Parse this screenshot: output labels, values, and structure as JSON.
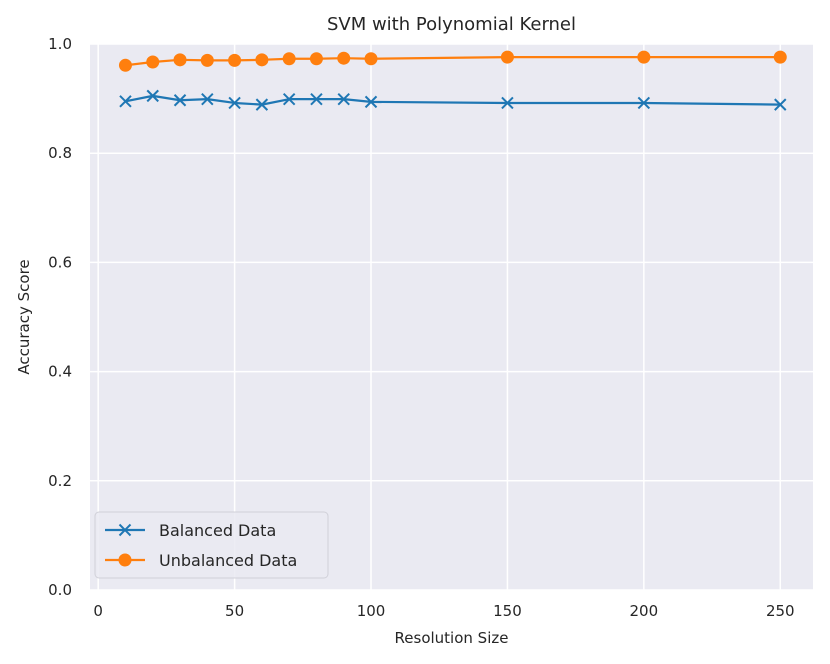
{
  "chart_data": {
    "type": "line",
    "title": "SVM with Polynomial Kernel",
    "xlabel": "Resolution Size",
    "ylabel": "Accuracy Score",
    "xlim": [
      -3,
      262
    ],
    "ylim": [
      0.0,
      1.0
    ],
    "xticks": [
      0,
      50,
      100,
      150,
      200,
      250
    ],
    "yticks": [
      0.0,
      0.2,
      0.4,
      0.6,
      0.8,
      1.0
    ],
    "xtick_labels": [
      "0",
      "50",
      "100",
      "150",
      "200",
      "250"
    ],
    "ytick_labels": [
      "0.0",
      "0.2",
      "0.4",
      "0.6",
      "0.8",
      "1.0"
    ],
    "grid": true,
    "legend_position": "lower-left",
    "x": [
      10,
      20,
      30,
      40,
      50,
      60,
      70,
      80,
      90,
      100,
      150,
      200,
      250
    ],
    "series": [
      {
        "name": "Balanced Data",
        "marker": "x",
        "color": "#1f77b4",
        "values": [
          0.895,
          0.905,
          0.897,
          0.899,
          0.892,
          0.889,
          0.899,
          0.899,
          0.899,
          0.894,
          0.892,
          0.892,
          0.889
        ]
      },
      {
        "name": "Unbalanced Data",
        "marker": "o",
        "color": "#ff7f0e",
        "values": [
          0.961,
          0.967,
          0.971,
          0.97,
          0.97,
          0.971,
          0.973,
          0.973,
          0.974,
          0.973,
          0.976,
          0.976,
          0.976
        ]
      }
    ]
  },
  "colors": {
    "plot_background": "#eaeaf2",
    "grid": "#ffffff",
    "text": "#262626"
  }
}
